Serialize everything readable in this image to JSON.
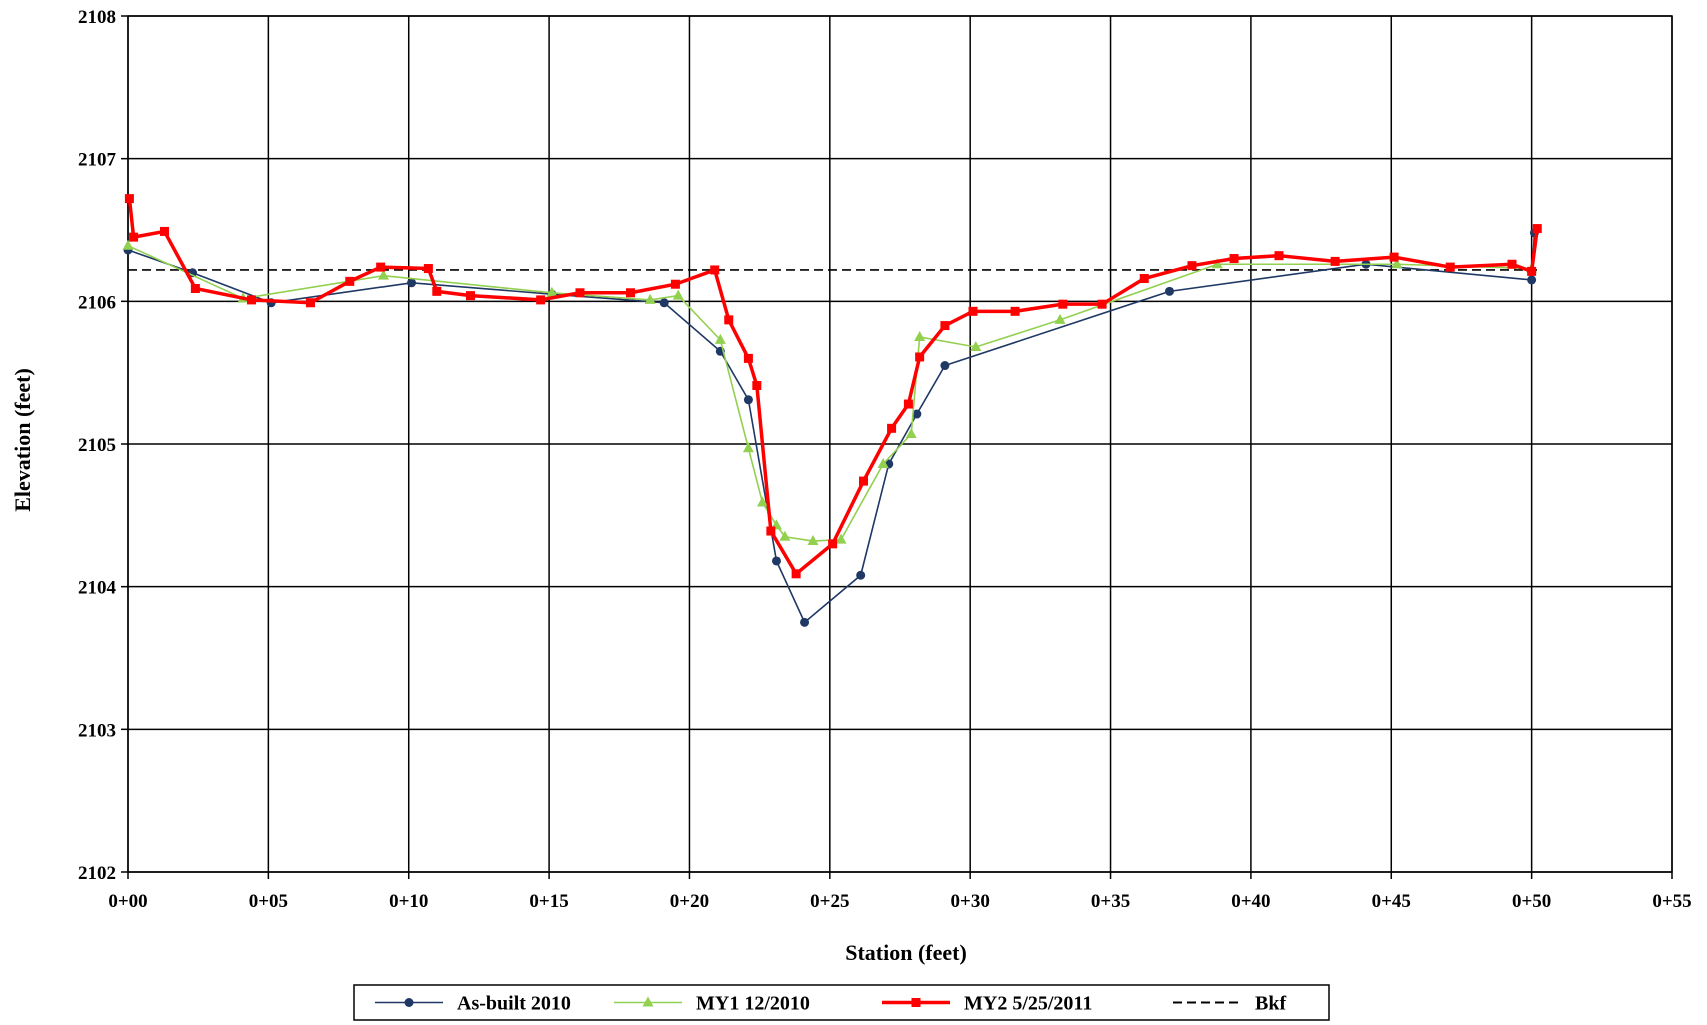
{
  "chart_data": {
    "type": "line",
    "title": "",
    "xlabel": "Station (feet)",
    "ylabel": "Elevation (feet)",
    "xlim": [
      0,
      55
    ],
    "ylim": [
      2102,
      2108
    ],
    "x_ticks": [
      0,
      5,
      10,
      15,
      20,
      25,
      30,
      35,
      40,
      45,
      50,
      55
    ],
    "x_tick_labels": [
      "0+00",
      "0+05",
      "0+10",
      "0+15",
      "0+20",
      "0+25",
      "0+30",
      "0+35",
      "0+40",
      "0+45",
      "0+50",
      "0+55"
    ],
    "y_ticks": [
      2102,
      2103,
      2104,
      2105,
      2106,
      2107,
      2108
    ],
    "y_tick_labels": [
      "2102",
      "2103",
      "2104",
      "2105",
      "2106",
      "2107",
      "2108"
    ],
    "grid": true,
    "legend_position": "bottom",
    "series": [
      {
        "name": "As-built 2010",
        "color": "#1f3864",
        "marker": "circle",
        "points": [
          [
            0,
            2106.36
          ],
          [
            2.3,
            2106.2
          ],
          [
            5.1,
            2105.99
          ],
          [
            10.1,
            2106.13
          ],
          [
            15.1,
            2106.05
          ],
          [
            19.1,
            2105.99
          ],
          [
            21.1,
            2105.65
          ],
          [
            22.1,
            2105.31
          ],
          [
            23.1,
            2104.18
          ],
          [
            24.1,
            2103.75
          ],
          [
            26.1,
            2104.08
          ],
          [
            27.1,
            2104.86
          ],
          [
            28.1,
            2105.21
          ],
          [
            29.1,
            2105.55
          ],
          [
            37.1,
            2106.07
          ],
          [
            44.1,
            2106.26
          ],
          [
            50.0,
            2106.15
          ],
          [
            50.1,
            2106.48
          ]
        ]
      },
      {
        "name": "MY1 12/2010",
        "color": "#92d050",
        "marker": "triangle",
        "points": [
          [
            0,
            2106.39
          ],
          [
            4.1,
            2106.02
          ],
          [
            9.1,
            2106.18
          ],
          [
            15.1,
            2106.06
          ],
          [
            18.6,
            2106.01
          ],
          [
            19.6,
            2106.04
          ],
          [
            21.1,
            2105.73
          ],
          [
            22.1,
            2104.97
          ],
          [
            22.6,
            2104.59
          ],
          [
            23.1,
            2104.43
          ],
          [
            23.4,
            2104.35
          ],
          [
            24.4,
            2104.32
          ],
          [
            25.4,
            2104.33
          ],
          [
            26.9,
            2104.86
          ],
          [
            27.9,
            2105.07
          ],
          [
            28.2,
            2105.75
          ],
          [
            30.2,
            2105.68
          ],
          [
            33.2,
            2105.87
          ],
          [
            38.8,
            2106.26
          ],
          [
            45.2,
            2106.26
          ],
          [
            50.0,
            2106.23
          ]
        ]
      },
      {
        "name": "MY2 5/25/2011",
        "color": "#ff0000",
        "marker": "square",
        "points": [
          [
            0.05,
            2106.72
          ],
          [
            0.2,
            2106.45
          ],
          [
            1.3,
            2106.49
          ],
          [
            2.4,
            2106.09
          ],
          [
            4.4,
            2106.01
          ],
          [
            6.5,
            2105.99
          ],
          [
            7.9,
            2106.14
          ],
          [
            9.0,
            2106.24
          ],
          [
            10.7,
            2106.23
          ],
          [
            11.0,
            2106.07
          ],
          [
            12.2,
            2106.04
          ],
          [
            14.7,
            2106.01
          ],
          [
            16.1,
            2106.06
          ],
          [
            17.9,
            2106.06
          ],
          [
            19.5,
            2106.12
          ],
          [
            20.9,
            2106.22
          ],
          [
            21.4,
            2105.87
          ],
          [
            22.1,
            2105.6
          ],
          [
            22.4,
            2105.41
          ],
          [
            22.9,
            2104.39
          ],
          [
            23.8,
            2104.09
          ],
          [
            25.1,
            2104.3
          ],
          [
            26.2,
            2104.74
          ],
          [
            27.2,
            2105.11
          ],
          [
            27.8,
            2105.28
          ],
          [
            28.2,
            2105.61
          ],
          [
            29.1,
            2105.83
          ],
          [
            30.1,
            2105.93
          ],
          [
            31.6,
            2105.93
          ],
          [
            33.3,
            2105.98
          ],
          [
            34.7,
            2105.98
          ],
          [
            36.2,
            2106.16
          ],
          [
            37.9,
            2106.25
          ],
          [
            39.4,
            2106.3
          ],
          [
            41.0,
            2106.32
          ],
          [
            43.0,
            2106.28
          ],
          [
            45.1,
            2106.31
          ],
          [
            47.1,
            2106.24
          ],
          [
            49.3,
            2106.26
          ],
          [
            50.0,
            2106.21
          ],
          [
            50.2,
            2106.51
          ]
        ]
      },
      {
        "name": "Bkf",
        "color": "#000000",
        "dashed": true,
        "points": [
          [
            0,
            2106.22
          ],
          [
            50.2,
            2106.22
          ]
        ]
      }
    ]
  }
}
